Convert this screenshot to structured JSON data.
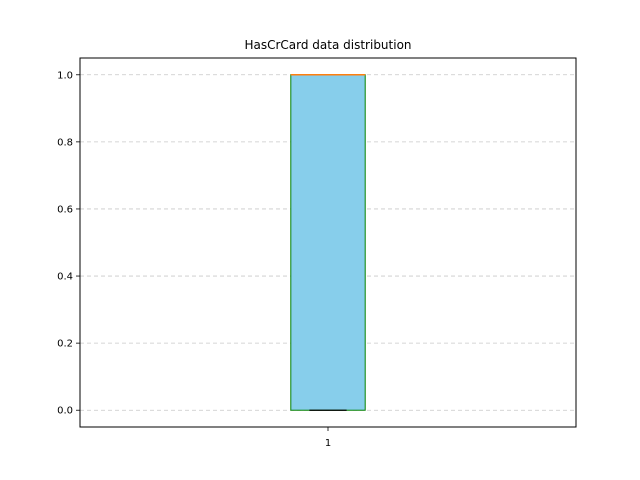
{
  "chart_data": {
    "type": "box",
    "title": "HasCrCard data distribution",
    "xlabel": "",
    "ylabel": "",
    "categories": [
      "1"
    ],
    "boxes": [
      {
        "category": "1",
        "whisker_low": 0.0,
        "q1": 0.0,
        "median": 1.0,
        "q3": 1.0,
        "whisker_high": 1.0
      }
    ],
    "yticks": [
      0.0,
      0.2,
      0.4,
      0.6,
      0.8,
      1.0
    ],
    "ytick_labels": [
      "0.0",
      "0.2",
      "0.4",
      "0.6",
      "0.8",
      "1.0"
    ],
    "ylim": [
      -0.05,
      1.05
    ],
    "grid": {
      "y": true,
      "style": "dashed"
    },
    "colors": {
      "box_fill": "#87ceeb",
      "box_edge": "#008000",
      "median": "#ff7f0e",
      "whisker": "#000000",
      "grid": "#c8c8c8"
    }
  }
}
